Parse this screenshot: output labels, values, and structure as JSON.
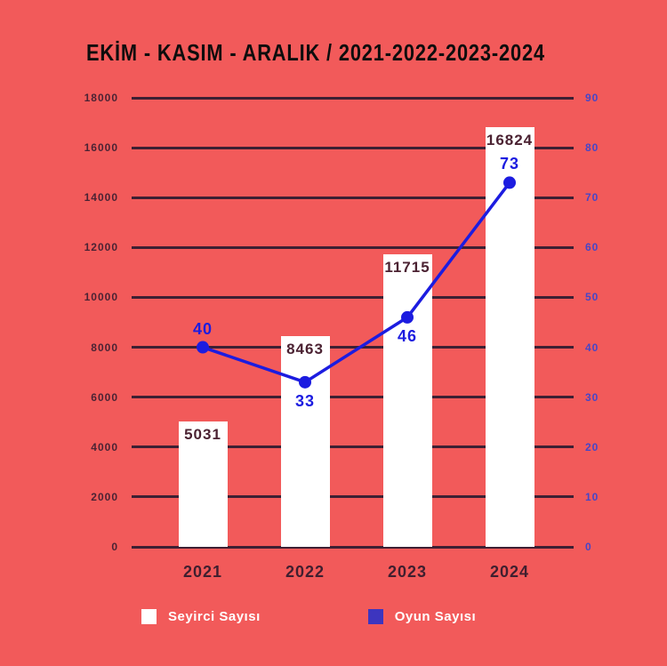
{
  "title": "EKİM - KASIM - ARALIK / 2021-2022-2023-2024",
  "colors": {
    "background": "#f25a5a",
    "gridline": "#3d2033",
    "bar_fill": "#ffffff",
    "bar_label_text": "#4b2232",
    "left_axis_text": "#4a2334",
    "right_axis_text": "#4646c8",
    "line": "#1c1ce0",
    "point_label_text": "#1c1ce0",
    "x_label_text": "#3f1f2f",
    "legend_bar_swatch": "#ffffff",
    "legend_line_swatch": "#3d35bf",
    "legend_text": "#ffffff",
    "title_text": "#0d0d0d"
  },
  "chart_data": {
    "type": "bar+line",
    "title": "EKİM - KASIM - ARALIK / 2021-2022-2023-2024",
    "categories": [
      "2021",
      "2022",
      "2023",
      "2024"
    ],
    "series": [
      {
        "name": "Seyirci Sayısı",
        "type": "bar",
        "axis": "left",
        "color": "#ffffff",
        "values": [
          5031,
          8463,
          11715,
          16824
        ]
      },
      {
        "name": "Oyun Sayısı",
        "type": "line",
        "axis": "right",
        "color": "#1c1ce0",
        "values": [
          40,
          33,
          46,
          73
        ],
        "label_positions": [
          "above",
          "below",
          "below",
          "above"
        ]
      }
    ],
    "left_axis": {
      "min": 0,
      "max": 18000,
      "step": 2000,
      "ticks": [
        "18000",
        "16000",
        "14000",
        "12000",
        "10000",
        "8000",
        "6000",
        "4000",
        "2000",
        "0"
      ]
    },
    "right_axis": {
      "min": 0,
      "max": 90,
      "step": 10,
      "ticks": [
        "90",
        "80",
        "70",
        "60",
        "50",
        "40",
        "30",
        "20",
        "10",
        "0"
      ]
    },
    "grid": true,
    "legend_position": "bottom-left"
  },
  "legend": {
    "items": [
      {
        "label": "Seyirci Sayısı",
        "swatch_color": "#ffffff"
      },
      {
        "label": "Oyun Sayısı",
        "swatch_color": "#3d35bf"
      }
    ]
  }
}
